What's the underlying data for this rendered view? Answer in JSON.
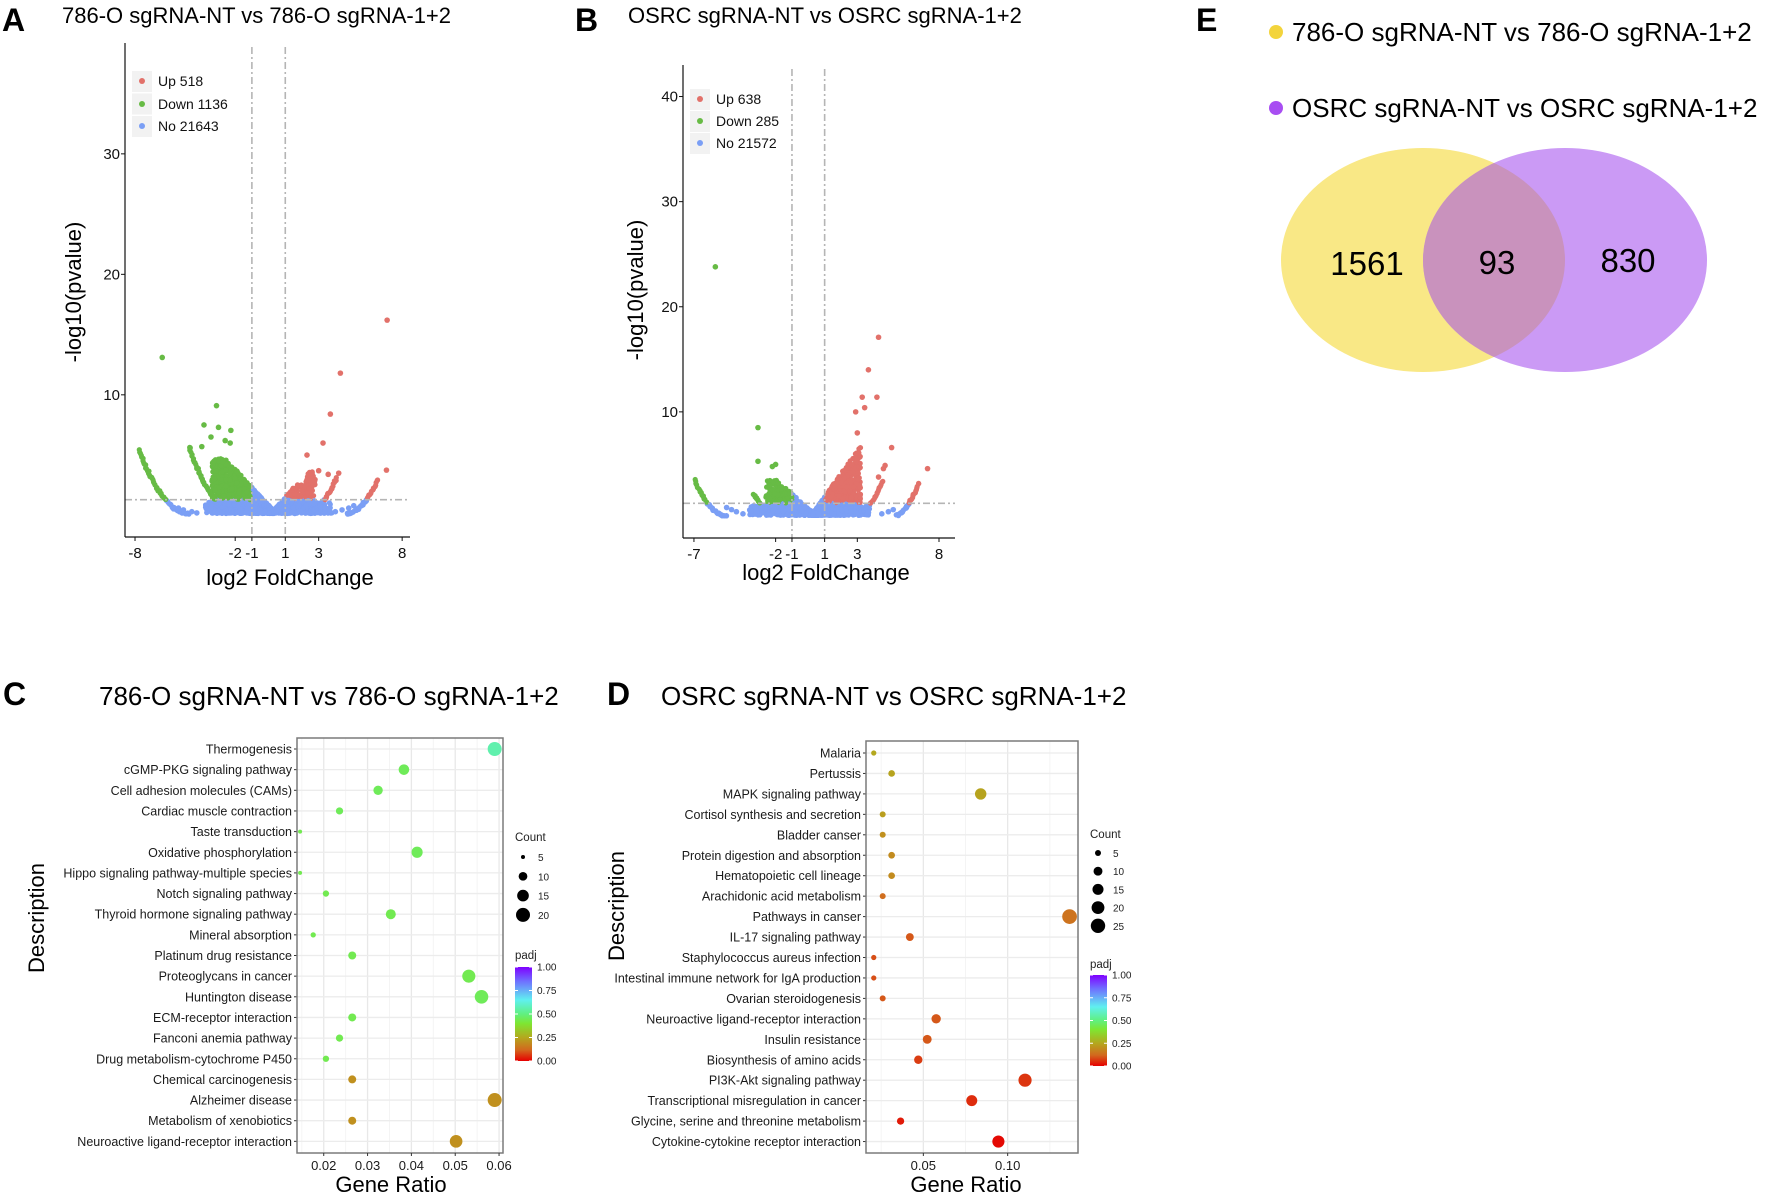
{
  "colors": {
    "up": "#e2716a",
    "down": "#67bb45",
    "no": "#7b9ff5",
    "venn_set1": "#f9e886",
    "venn_set2": "#cb9af5",
    "venn_overlap": "#c992bd",
    "venn_dot1": "#f3d43c",
    "venn_dot2": "#a84ef2"
  },
  "panels": {
    "A": "A",
    "B": "B",
    "C": "C",
    "D": "D",
    "E": "E"
  },
  "chart_data": [
    {
      "panel": "A",
      "type": "scatter",
      "subtype": "volcano",
      "title": "786-O sgRNA-NT vs 786-O sgRNA-1+2",
      "xlabel": "log2 FoldChange",
      "ylabel": "-log10(pvalue)",
      "xlim": [
        -8.6,
        8.47
      ],
      "ylim": [
        -1.8,
        39.2
      ],
      "x_ticks": [
        "-8",
        "-2",
        "-1",
        "1",
        "3",
        "8"
      ],
      "y_ticks": [
        "10",
        "20",
        "30"
      ],
      "thresholds": {
        "log2fc": [
          -1,
          1
        ],
        "neg_log10_p": 1.3
      },
      "legend": [
        {
          "key": "up",
          "label": "Up 518",
          "count": 518
        },
        {
          "key": "down",
          "label": "Down 1136",
          "count": 1136
        },
        {
          "key": "no",
          "label": "No 21643",
          "count": 21643
        }
      ],
      "legend_position": "top-left",
      "highlighted_points": [
        [
          -6.37,
          13.1
        ],
        [
          -3.12,
          9.1
        ],
        [
          -3.87,
          7.5
        ],
        [
          -3.0,
          7.3
        ],
        [
          -2.26,
          7.05
        ],
        [
          -3.45,
          6.5
        ],
        [
          -2.6,
          6.2
        ],
        [
          -2.3,
          6.0
        ],
        [
          -4.7,
          5.6
        ],
        [
          -4.0,
          5.7
        ],
        [
          7.1,
          16.2
        ],
        [
          4.3,
          11.8
        ],
        [
          3.7,
          8.4
        ],
        [
          3.26,
          6.0
        ],
        [
          2.3,
          5.0
        ],
        [
          7.06,
          3.75
        ],
        [
          4.2,
          3.5
        ],
        [
          3.57,
          3.4
        ],
        [
          3.0,
          3.7
        ],
        [
          -5.4,
          0.6
        ],
        [
          -5.1,
          0.45
        ],
        [
          -4.6,
          0.3
        ],
        [
          -4.3,
          0.2
        ],
        [
          4.0,
          0.3
        ],
        [
          4.4,
          0.45
        ],
        [
          4.8,
          0.6
        ],
        [
          5.1,
          0.8
        ]
      ]
    },
    {
      "panel": "B",
      "type": "scatter",
      "subtype": "volcano",
      "title": "OSRC sgRNA-NT vs OSRC sgRNA-1+2",
      "xlabel": "log2 FoldChange",
      "ylabel": "-log10(pvalue)",
      "xlim": [
        -7.67,
        8.98
      ],
      "ylim": [
        -2.0,
        43.0
      ],
      "x_ticks": [
        "-7",
        "-2",
        "-1",
        "1",
        "3",
        "8"
      ],
      "y_ticks": [
        "10",
        "20",
        "30",
        "40"
      ],
      "thresholds": {
        "log2fc": [
          -1,
          1
        ],
        "neg_log10_p": 1.3
      },
      "legend": [
        {
          "key": "up",
          "label": "Up 638",
          "count": 638
        },
        {
          "key": "down",
          "label": "Down 285",
          "count": 285
        },
        {
          "key": "no",
          "label": "No 21572",
          "count": 21572
        }
      ],
      "legend_position": "top-left",
      "highlighted_points": [
        [
          -5.69,
          23.8
        ],
        [
          -3.08,
          8.5
        ],
        [
          -3.08,
          5.3
        ],
        [
          -2.0,
          5.0
        ],
        [
          -2.2,
          4.8
        ],
        [
          4.3,
          17.1
        ],
        [
          3.68,
          14.0
        ],
        [
          3.3,
          11.4
        ],
        [
          4.2,
          11.4
        ],
        [
          3.45,
          10.4
        ],
        [
          2.9,
          10.0
        ],
        [
          3.0,
          8.0
        ],
        [
          5.1,
          6.6
        ],
        [
          7.3,
          4.6
        ],
        [
          4.7,
          4.9
        ],
        [
          4.6,
          4.6
        ],
        [
          4.3,
          3.8
        ],
        [
          -5.0,
          0.9
        ],
        [
          -4.7,
          0.7
        ],
        [
          -4.4,
          0.5
        ],
        [
          -4.0,
          0.3
        ],
        [
          4.5,
          0.3
        ],
        [
          4.9,
          0.5
        ],
        [
          5.2,
          0.7
        ]
      ]
    },
    {
      "panel": "C",
      "type": "scatter",
      "subtype": "dotplot",
      "title": "786-O sgRNA-NT vs 786-O sgRNA-1+2",
      "xlabel": "Gene Ratio",
      "ylabel": "Description",
      "xlim": [
        0.0139,
        0.0609
      ],
      "x_ticks": [
        "0.02",
        "0.03",
        "0.04",
        "0.05",
        "0.06"
      ],
      "categories": [
        "Thermogenesis",
        "cGMP-PKG signaling pathway",
        "Cell adhesion molecules (CAMs)",
        "Cardiac muscle contraction",
        "Taste transduction",
        "Oxidative phosphorylation",
        "Hippo signaling pathway-multiple species",
        "Notch signaling pathway",
        "Thyroid hormone signaling pathway",
        "Mineral absorption",
        "Platinum drug resistance",
        "Proteoglycans in cancer",
        "Huntington disease",
        "ECM-receptor interaction",
        "Fanconi anemia pathway",
        "Drug metabolism-cytochrome P450",
        "Chemical carcinogenesis",
        "Alzheimer disease",
        "Metabolism of xenobiotics",
        "Neuroactive ligand-receptor interaction"
      ],
      "gene_ratio": [
        0.059,
        0.0383,
        0.0324,
        0.0236,
        0.0146,
        0.0413,
        0.0146,
        0.0205,
        0.0353,
        0.0176,
        0.0265,
        0.0531,
        0.056,
        0.0265,
        0.0236,
        0.0205,
        0.0265,
        0.059,
        0.0265,
        0.0502
      ],
      "count": [
        20,
        13,
        11,
        8,
        5,
        14,
        5,
        7,
        12,
        6,
        9,
        18,
        19,
        9,
        8,
        7,
        9,
        20,
        9,
        17
      ],
      "padj": [
        0.56,
        0.45,
        0.45,
        0.45,
        0.44,
        0.45,
        0.44,
        0.44,
        0.44,
        0.44,
        0.44,
        0.44,
        0.45,
        0.44,
        0.44,
        0.44,
        0.2,
        0.2,
        0.2,
        0.2
      ],
      "size_legend": {
        "title": "Count",
        "values": [
          5,
          10,
          15,
          20
        ]
      },
      "color_legend": {
        "title": "padj",
        "ticks": [
          "1.00",
          "0.75",
          "0.50",
          "0.25",
          "0.00"
        ],
        "range": [
          0,
          1
        ]
      }
    },
    {
      "panel": "D",
      "type": "scatter",
      "subtype": "dotplot",
      "title": "OSRC sgRNA-NT vs OSRC sgRNA-1+2",
      "xlabel": "Gene Ratio",
      "ylabel": "Description",
      "xlim": [
        0.016,
        0.1417
      ],
      "x_ticks": [
        "0.05",
        "0.10"
      ],
      "categories": [
        "Malaria",
        "Pertussis",
        "MAPK signaling pathway",
        "Cortisol synthesis and secretion",
        "Bladder canser",
        "Protein digestion and absorption",
        "Hematopoietic cell lineage",
        "Arachidonic acid metabolism",
        "Pathways in canser",
        "IL-17 signaling pathway",
        "Staphylococcus aureus infection",
        "Intestinal immune network for IgA production",
        "Ovarian steroidogenesis",
        "Neuroactive ligand-receptor interaction",
        "Insulin resistance",
        "Biosynthesis of amino acids",
        "PI3K-Akt signaling pathway",
        "Transcriptional misregulation in cancer",
        "Glycine, serine and threonine metabolism",
        "Cytokine-cytokine receptor interaction"
      ],
      "gene_ratio": [
        0.0206,
        0.0312,
        0.084,
        0.0259,
        0.0259,
        0.0312,
        0.0312,
        0.0259,
        0.1367,
        0.042,
        0.0206,
        0.0206,
        0.0259,
        0.0576,
        0.0523,
        0.047,
        0.1103,
        0.0787,
        0.0365,
        0.0945
      ],
      "count": [
        4,
        6,
        16,
        5,
        5,
        6,
        6,
        5,
        26,
        8,
        4,
        4,
        5,
        11,
        10,
        9,
        21,
        15,
        7,
        18
      ],
      "padj": [
        0.25,
        0.24,
        0.24,
        0.23,
        0.2,
        0.19,
        0.19,
        0.13,
        0.14,
        0.1,
        0.09,
        0.09,
        0.1,
        0.1,
        0.1,
        0.07,
        0.06,
        0.05,
        0.03,
        0.01
      ],
      "size_legend": {
        "title": "Count",
        "values": [
          5,
          10,
          15,
          20,
          25
        ]
      },
      "color_legend": {
        "title": "padj",
        "ticks": [
          "1.00",
          "0.75",
          "0.50",
          "0.25",
          "0.00"
        ],
        "range": [
          0,
          1
        ]
      }
    },
    {
      "panel": "E",
      "type": "venn",
      "sets": [
        "786-O sgRNA-NT vs 786-O sgRNA-1+2",
        "OSRC sgRNA-NT vs OSRC sgRNA-1+2"
      ],
      "only_set1": "1561",
      "intersection": "93",
      "only_set2": "830",
      "legend_position": "top"
    }
  ]
}
